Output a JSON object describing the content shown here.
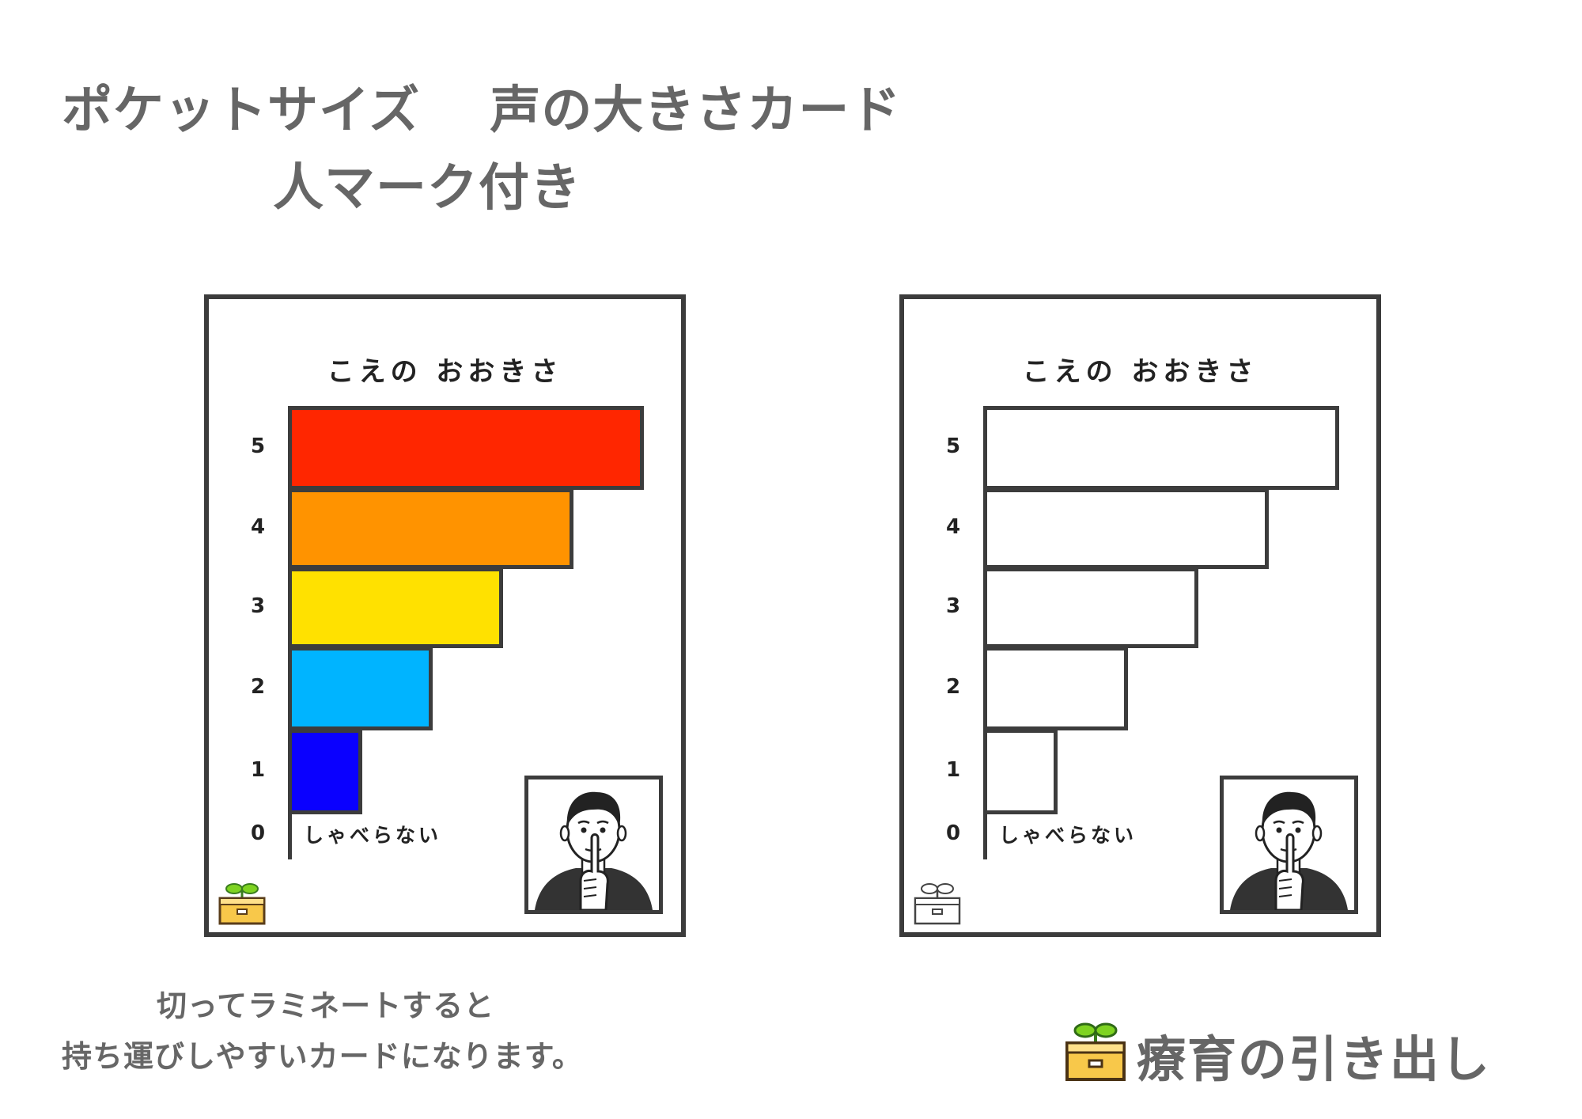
{
  "page_title": {
    "line1": "ポケットサイズ　 声の大きさカード",
    "line2": "人マーク付き"
  },
  "cards": [
    {
      "title": "こえの おおきさ",
      "silent_label": "しゃべらない",
      "colored": true,
      "levels": [
        {
          "label": "5",
          "level": 5,
          "color": "#FF2600"
        },
        {
          "label": "4",
          "level": 4,
          "color": "#FF9300"
        },
        {
          "label": "3",
          "level": 3,
          "color": "#FFE100"
        },
        {
          "label": "2",
          "level": 2,
          "color": "#00B4FF"
        },
        {
          "label": "1",
          "level": 1,
          "color": "#0A00FF"
        }
      ],
      "zero_label": "0",
      "person_icon": "person-shh-icon",
      "logo_icon": "sprout-drawer-color-icon"
    },
    {
      "title": "こえの おおきさ",
      "silent_label": "しゃべらない",
      "colored": false,
      "levels": [
        {
          "label": "5",
          "level": 5,
          "color": "#FFFFFF"
        },
        {
          "label": "4",
          "level": 4,
          "color": "#FFFFFF"
        },
        {
          "label": "3",
          "level": 3,
          "color": "#FFFFFF"
        },
        {
          "label": "2",
          "level": 2,
          "color": "#FFFFFF"
        },
        {
          "label": "1",
          "level": 1,
          "color": "#FFFFFF"
        }
      ],
      "zero_label": "0",
      "person_icon": "person-shh-icon",
      "logo_icon": "sprout-drawer-outline-icon"
    }
  ],
  "footnote": {
    "line1": "切ってラミネートすると",
    "line2": "持ち運びしやすいカードになります。"
  },
  "brand": {
    "name": "療育の引き出し",
    "icon": "sprout-drawer-icon"
  }
}
